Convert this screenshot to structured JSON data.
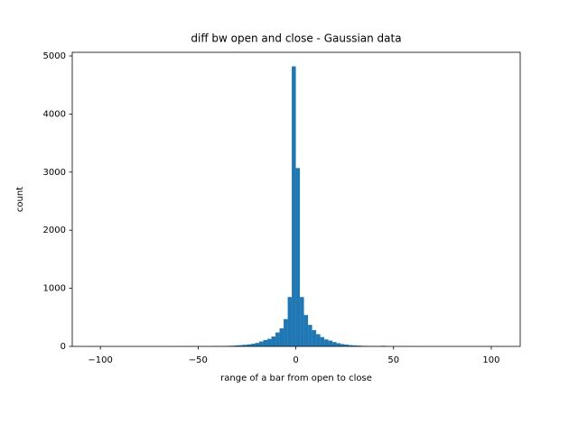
{
  "chart_data": {
    "type": "histogram",
    "title": "diff bw open and close - Gaussian data",
    "xlabel": "range of a bar from open to close",
    "ylabel": "count",
    "color": "#1f77b4",
    "bins": [
      -104,
      -101.92,
      -99.84,
      -97.76,
      -95.68,
      -93.6,
      -91.52,
      -89.44,
      -87.36,
      -85.28,
      -83.2,
      -81.12,
      -79.04,
      -76.96,
      -74.88,
      -72.8,
      -70.72,
      -68.64,
      -66.56,
      -64.48,
      -62.4,
      -60.32,
      -58.24,
      -56.16,
      -54.08,
      -52,
      -49.92,
      -47.84,
      -45.76,
      -43.68,
      -41.6,
      -39.52,
      -37.44,
      -35.36,
      -33.28,
      -31.2,
      -29.12,
      -27.04,
      -24.96,
      -22.88,
      -20.8,
      -18.72,
      -16.64,
      -14.56,
      -12.48,
      -10.4,
      -8.32,
      -6.24,
      -4.16,
      -2.08,
      0,
      2.08,
      4.16,
      6.24,
      8.32,
      10.4,
      12.48,
      14.56,
      16.64,
      18.72,
      20.8,
      22.88,
      24.96,
      27.04,
      29.12,
      31.2,
      33.28,
      35.36,
      37.44,
      39.52,
      41.6,
      43.68,
      45.76,
      47.84,
      49.92,
      52,
      54.08,
      56.16,
      58.24,
      60.32,
      62.4,
      64.48,
      66.56,
      68.64,
      70.72,
      72.8,
      74.88,
      76.96,
      79.04,
      81.12,
      83.2,
      85.28,
      87.36,
      89.44,
      91.52,
      93.6,
      95.68,
      97.76,
      99.84,
      101.92,
      104
    ],
    "values": [
      1,
      0,
      0,
      0,
      0,
      0,
      0,
      0,
      0,
      0,
      0,
      0,
      0,
      0,
      0,
      0,
      0,
      0,
      0,
      0,
      1,
      0,
      1,
      0,
      1,
      1,
      1,
      2,
      2,
      3,
      8,
      4,
      6,
      9,
      12,
      18,
      22,
      28,
      35,
      45,
      60,
      85,
      110,
      130,
      170,
      240,
      310,
      470,
      850,
      4820,
      3070,
      850,
      540,
      370,
      280,
      210,
      160,
      120,
      100,
      75,
      55,
      40,
      30,
      22,
      18,
      14,
      10,
      8,
      6,
      4,
      3,
      10,
      3,
      2,
      1,
      1,
      1,
      0,
      1,
      0,
      0,
      0,
      0,
      0,
      0,
      0,
      0,
      0,
      0,
      0,
      0,
      0,
      0,
      0,
      0,
      0,
      0,
      0,
      0,
      1
    ],
    "xlim": [
      -114.4,
      114.8
    ],
    "ylim": [
      0,
      5062
    ],
    "xticks": [
      {
        "value": -100,
        "label": "−100"
      },
      {
        "value": -50,
        "label": "−50"
      },
      0,
      50,
      100
    ],
    "yticks": [
      0,
      1000,
      2000,
      3000,
      4000,
      5000
    ]
  }
}
